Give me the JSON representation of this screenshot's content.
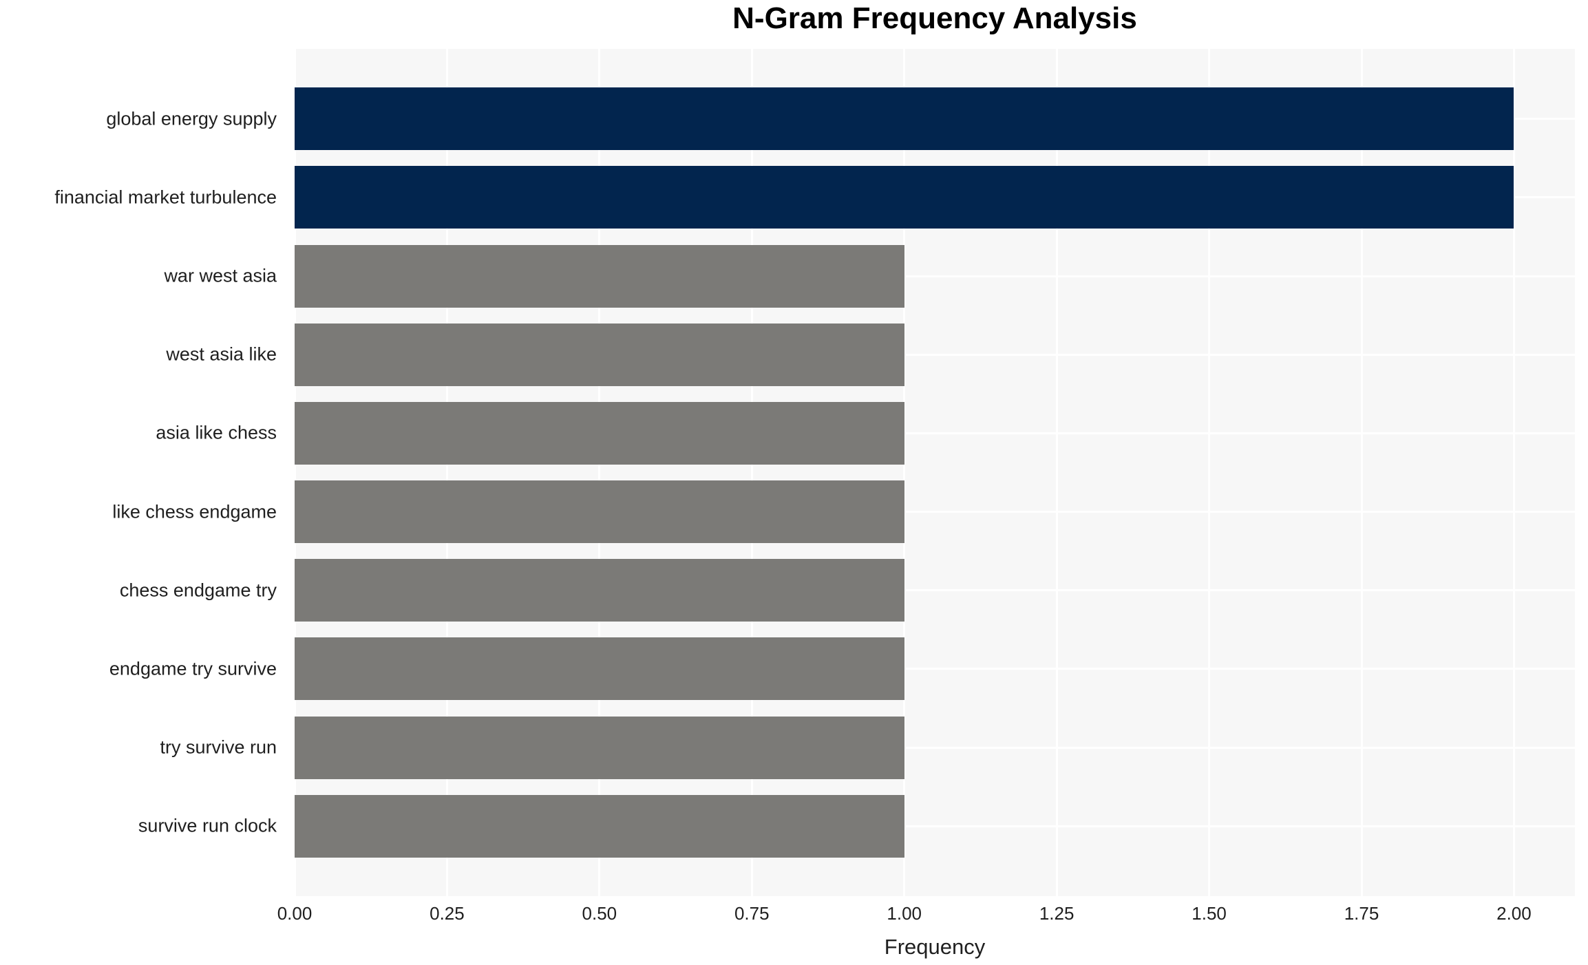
{
  "chart_data": {
    "type": "bar",
    "orientation": "horizontal",
    "title": "N-Gram Frequency Analysis",
    "xlabel": "Frequency",
    "ylabel": "",
    "categories": [
      "global energy supply",
      "financial market turbulence",
      "war west asia",
      "west asia like",
      "asia like chess",
      "like chess endgame",
      "chess endgame try",
      "endgame try survive",
      "try survive run",
      "survive run clock"
    ],
    "values": [
      2.0,
      2.0,
      1.0,
      1.0,
      1.0,
      1.0,
      1.0,
      1.0,
      1.0,
      1.0
    ],
    "bar_colors": [
      "#02254e",
      "#02254e",
      "#7b7a77",
      "#7b7a77",
      "#7b7a77",
      "#7b7a77",
      "#7b7a77",
      "#7b7a77",
      "#7b7a77",
      "#7b7a77"
    ],
    "xlim": [
      0,
      2.1
    ],
    "xticks": [
      0.0,
      0.25,
      0.5,
      0.75,
      1.0,
      1.25,
      1.5,
      1.75,
      2.0
    ],
    "xtick_labels": [
      "0.00",
      "0.25",
      "0.50",
      "0.75",
      "1.00",
      "1.25",
      "1.50",
      "1.75",
      "2.00"
    ],
    "grid": true,
    "grid_color": "#ffffff",
    "plot_bg": "#f7f7f7",
    "legend": false,
    "colors": {
      "high_freq": "#02254e",
      "low_freq": "#7b7a77"
    }
  }
}
